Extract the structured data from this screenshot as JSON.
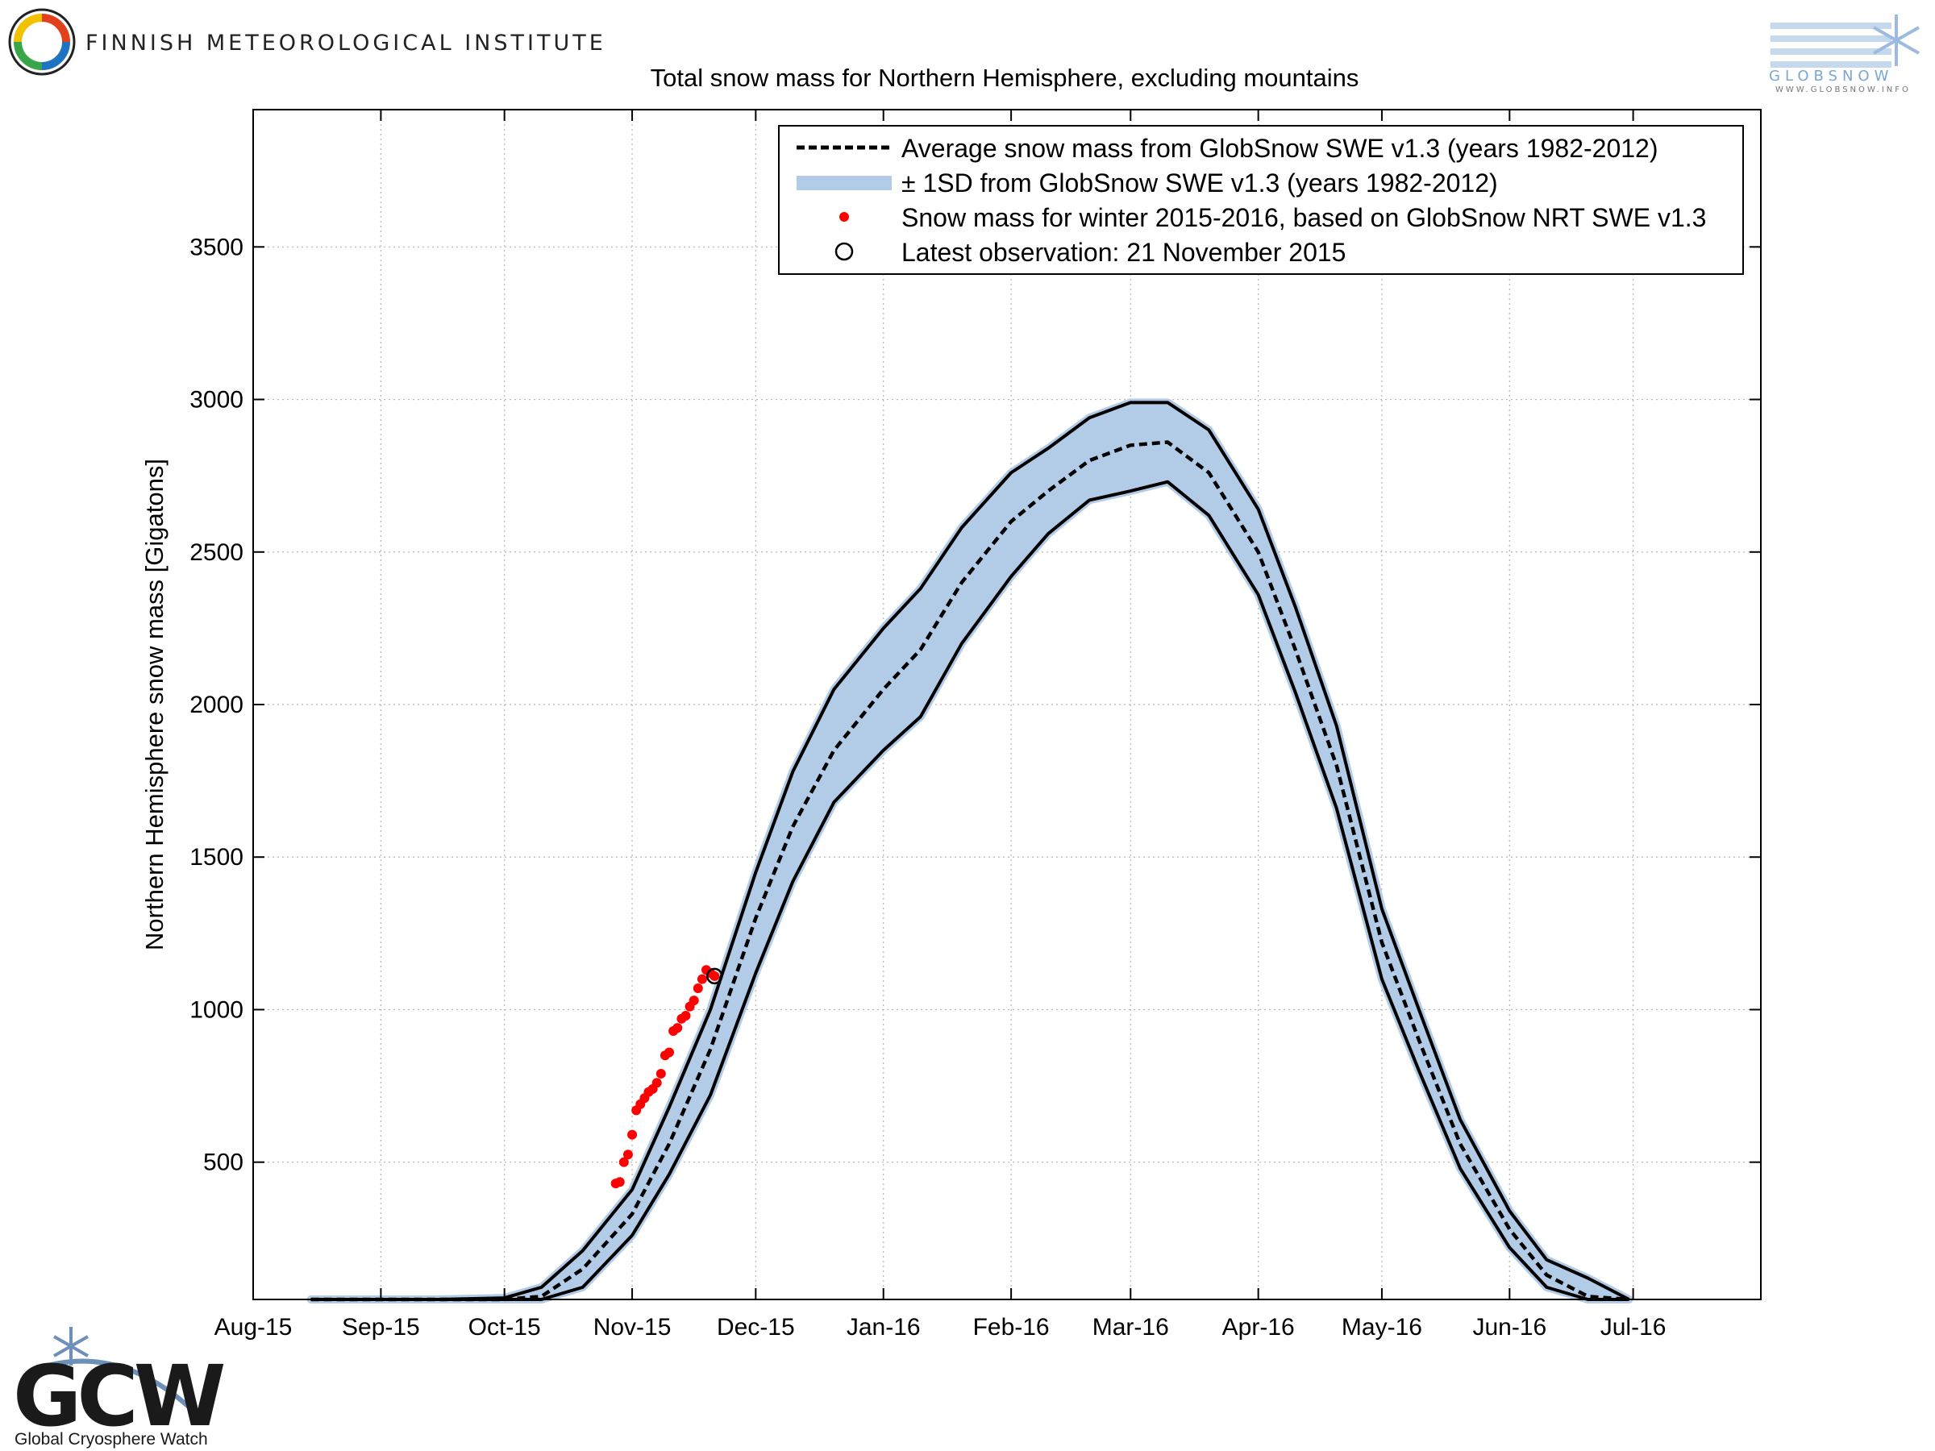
{
  "header": {
    "institute": "FINNISH METEOROLOGICAL INSTITUTE",
    "globsnow_logo_text": "GLOBSNOW",
    "globsnow_url": "WWW.GLOBSNOW.INFO"
  },
  "footer": {
    "gcw_logo_text": "GCW",
    "gcw_name": "Global Cryosphere Watch"
  },
  "colors": {
    "band": "#b2cbe6",
    "observed": "#ff0000",
    "line": "#000000"
  },
  "chart_data": {
    "type": "line",
    "title": "Total snow mass for Northern Hemisphere, excluding mountains",
    "xlabel": "",
    "ylabel": "Northern Hemisphere snow mass [Gigatons]",
    "ylim": [
      50,
      3950
    ],
    "xlim": [
      "2015-08-01",
      "2016-08-01"
    ],
    "grid": true,
    "legend_position": "top-right",
    "x_ticks": [
      {
        "date": "2015-08-01",
        "label": "Aug-15"
      },
      {
        "date": "2015-09-01",
        "label": "Sep-15"
      },
      {
        "date": "2015-10-01",
        "label": "Oct-15"
      },
      {
        "date": "2015-11-01",
        "label": "Nov-15"
      },
      {
        "date": "2015-12-01",
        "label": "Dec-15"
      },
      {
        "date": "2016-01-01",
        "label": "Jan-16"
      },
      {
        "date": "2016-02-01",
        "label": "Feb-16"
      },
      {
        "date": "2016-03-01",
        "label": "Mar-16"
      },
      {
        "date": "2016-04-01",
        "label": "Apr-16"
      },
      {
        "date": "2016-05-01",
        "label": "May-16"
      },
      {
        "date": "2016-06-01",
        "label": "Jun-16"
      },
      {
        "date": "2016-07-01",
        "label": "Jul-16"
      }
    ],
    "y_ticks": [
      {
        "value": 500,
        "label": "500"
      },
      {
        "value": 1000,
        "label": "1000"
      },
      {
        "value": 1500,
        "label": "1500"
      },
      {
        "value": 2000,
        "label": "2000"
      },
      {
        "value": 2500,
        "label": "2500"
      },
      {
        "value": 3000,
        "label": "3000"
      },
      {
        "value": 3500,
        "label": "3500"
      }
    ],
    "legend": [
      {
        "key": "mean",
        "label": "Average snow mass from GlobSnow SWE v1.3 (years 1982-2012)"
      },
      {
        "key": "band",
        "label": "± 1SD from GlobSnow SWE v1.3 (years 1982-2012)"
      },
      {
        "key": "observed",
        "label": "Snow mass for winter 2015-2016, based on GlobSnow NRT SWE v1.3"
      },
      {
        "key": "latest",
        "label": "Latest observation: 21 November 2015"
      }
    ],
    "series": [
      {
        "key": "mean",
        "x": [
          "2015-08-15",
          "2015-09-01",
          "2015-09-15",
          "2015-10-01",
          "2015-10-10",
          "2015-10-20",
          "2015-11-01",
          "2015-11-10",
          "2015-11-20",
          "2015-12-01",
          "2015-12-10",
          "2015-12-20",
          "2016-01-01",
          "2016-01-10",
          "2016-01-20",
          "2016-02-01",
          "2016-02-10",
          "2016-02-20",
          "2016-03-01",
          "2016-03-10",
          "2016-03-20",
          "2016-04-01",
          "2016-04-10",
          "2016-04-20",
          "2016-05-01",
          "2016-05-10",
          "2016-05-20",
          "2016-06-01",
          "2016-06-10",
          "2016-06-20",
          "2016-06-30"
        ],
        "y": [
          20,
          25,
          30,
          40,
          60,
          150,
          330,
          560,
          870,
          1300,
          1600,
          1850,
          2050,
          2180,
          2400,
          2600,
          2700,
          2800,
          2850,
          2860,
          2760,
          2500,
          2180,
          1800,
          1220,
          900,
          560,
          280,
          130,
          60,
          40
        ]
      },
      {
        "key": "upper",
        "x": [
          "2015-08-15",
          "2015-09-01",
          "2015-09-15",
          "2015-10-01",
          "2015-10-10",
          "2015-10-20",
          "2015-11-01",
          "2015-11-10",
          "2015-11-20",
          "2015-12-01",
          "2015-12-10",
          "2015-12-20",
          "2016-01-01",
          "2016-01-10",
          "2016-01-20",
          "2016-02-01",
          "2016-02-10",
          "2016-02-20",
          "2016-03-01",
          "2016-03-10",
          "2016-03-20",
          "2016-04-01",
          "2016-04-10",
          "2016-04-20",
          "2016-05-01",
          "2016-05-10",
          "2016-05-20",
          "2016-06-01",
          "2016-06-10",
          "2016-06-20",
          "2016-06-30"
        ],
        "y": [
          30,
          35,
          40,
          55,
          90,
          210,
          410,
          680,
          1000,
          1450,
          1780,
          2050,
          2250,
          2380,
          2580,
          2760,
          2840,
          2940,
          2990,
          2990,
          2900,
          2640,
          2320,
          1930,
          1330,
          1000,
          640,
          340,
          180,
          120,
          50
        ]
      },
      {
        "key": "lower",
        "x": [
          "2015-08-15",
          "2015-09-01",
          "2015-09-15",
          "2015-10-01",
          "2015-10-10",
          "2015-10-20",
          "2015-11-01",
          "2015-11-10",
          "2015-11-20",
          "2015-12-01",
          "2015-12-10",
          "2015-12-20",
          "2016-01-01",
          "2016-01-10",
          "2016-01-20",
          "2016-02-01",
          "2016-02-10",
          "2016-02-20",
          "2016-03-01",
          "2016-03-10",
          "2016-03-20",
          "2016-04-01",
          "2016-04-10",
          "2016-04-20",
          "2016-05-01",
          "2016-05-10",
          "2016-05-20",
          "2016-06-01",
          "2016-06-10",
          "2016-06-20",
          "2016-06-30"
        ],
        "y": [
          10,
          15,
          20,
          25,
          35,
          90,
          260,
          460,
          720,
          1120,
          1420,
          1680,
          1850,
          1960,
          2200,
          2420,
          2560,
          2670,
          2700,
          2730,
          2620,
          2360,
          2040,
          1660,
          1100,
          800,
          480,
          220,
          90,
          30,
          20
        ]
      },
      {
        "key": "observed",
        "x": [
          "2015-10-28",
          "2015-10-29",
          "2015-10-30",
          "2015-10-31",
          "2015-11-01",
          "2015-11-02",
          "2015-11-03",
          "2015-11-04",
          "2015-11-05",
          "2015-11-06",
          "2015-11-07",
          "2015-11-08",
          "2015-11-09",
          "2015-11-10",
          "2015-11-11",
          "2015-11-12",
          "2015-11-13",
          "2015-11-14",
          "2015-11-15",
          "2015-11-16",
          "2015-11-17",
          "2015-11-18",
          "2015-11-19",
          "2015-11-20",
          "2015-11-21"
        ],
        "y": [
          430,
          435,
          500,
          525,
          590,
          670,
          690,
          710,
          730,
          740,
          760,
          790,
          850,
          860,
          930,
          940,
          970,
          980,
          1010,
          1030,
          1070,
          1100,
          1130,
          1120,
          1110
        ]
      }
    ],
    "latest_point": {
      "x": "2015-11-21",
      "y": 1110
    }
  }
}
